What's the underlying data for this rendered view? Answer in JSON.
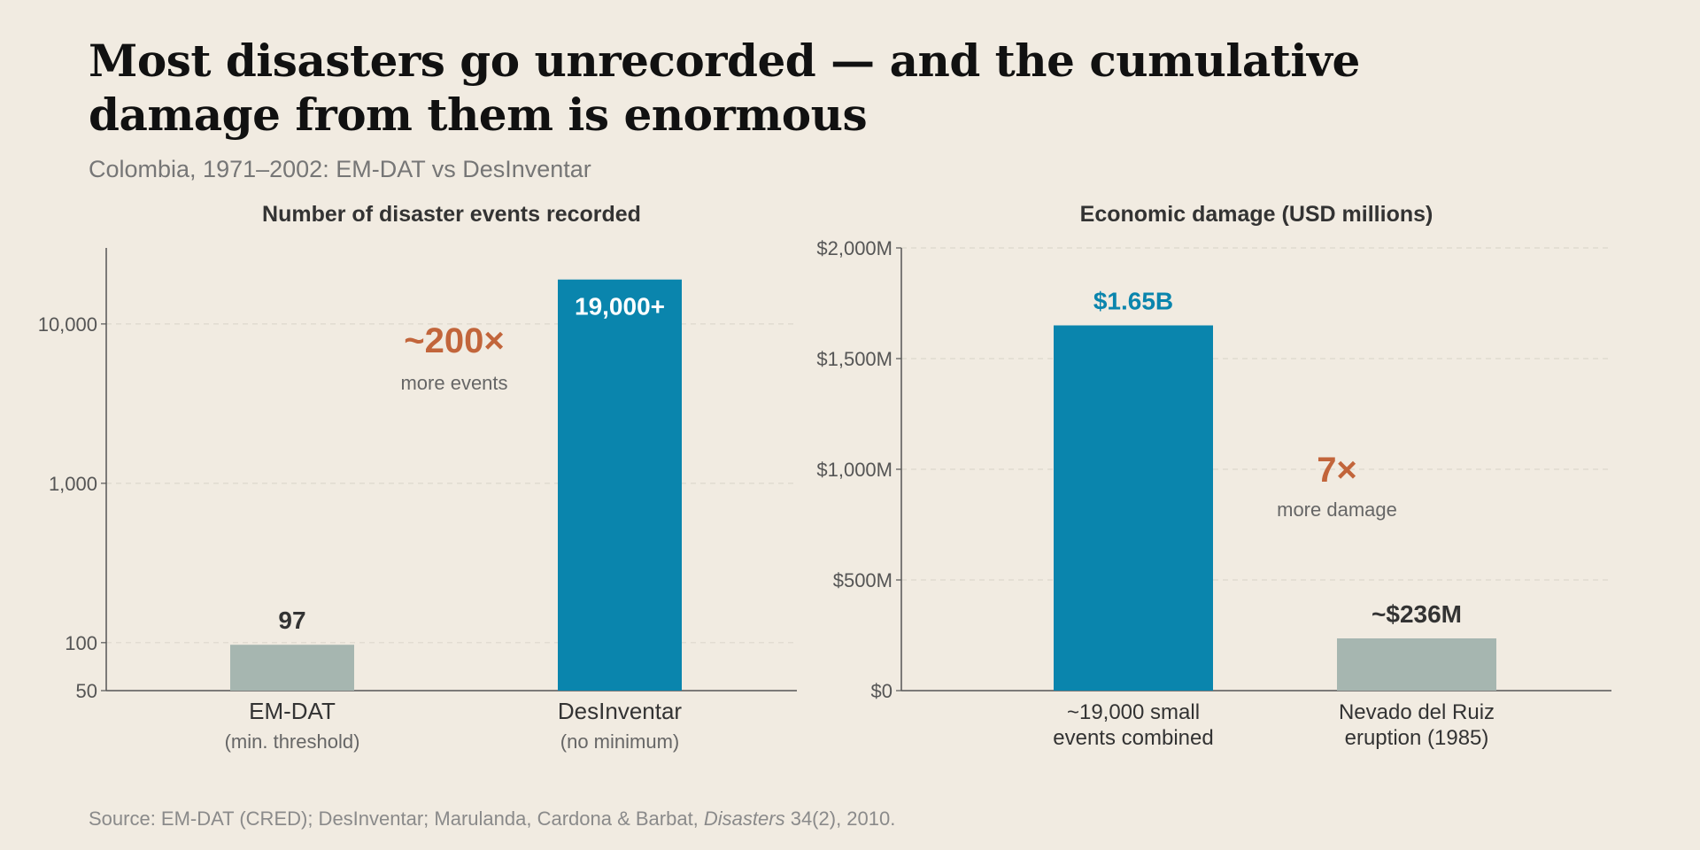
{
  "header": {
    "title_line1": "Most disasters go unrecorded — and the cumulative",
    "title_line2": "damage from them is enormous",
    "subtitle": "Colombia, 1971–2002: EM-DAT vs DesInventar"
  },
  "source": {
    "prefix": "Source: EM-DAT (CRED); DesInventar; Marulanda, Cardona & Barbat, ",
    "journal": "Disasters",
    "suffix": " 34(2), 2010."
  },
  "colors": {
    "accent": "#0a85ad",
    "muted_bar": "#a6b6b0",
    "highlight": "#c2653b",
    "axis": "#555555",
    "grid": "#ddd8cd"
  },
  "chart_data": [
    {
      "type": "bar",
      "title": "Number of disaster events recorded",
      "scale": "log",
      "ylim": [
        50,
        30000
      ],
      "yticks": [
        50,
        100,
        1000,
        10000
      ],
      "ytick_labels": [
        "50",
        "100",
        "1,000",
        "10,000"
      ],
      "grid": true,
      "categories": [
        {
          "label": "EM-DAT",
          "sublabel": "(min. threshold)"
        },
        {
          "label": "DesInventar",
          "sublabel": "(no minimum)"
        }
      ],
      "values": [
        97,
        19000
      ],
      "value_labels": [
        "97",
        "19,000+"
      ],
      "bar_colors": [
        "#a6b6b0",
        "#0a85ad"
      ],
      "annotation": {
        "text": "~200×",
        "subtext": "more events"
      }
    },
    {
      "type": "bar",
      "title": "Economic damage (USD millions)",
      "scale": "linear",
      "ylim": [
        0,
        2000
      ],
      "yticks": [
        0,
        500,
        1000,
        1500,
        2000
      ],
      "ytick_labels": [
        "$0",
        "$500M",
        "$1,000M",
        "$1,500M",
        "$2,000M"
      ],
      "grid": true,
      "categories": [
        {
          "line1": "~19,000 small",
          "line2": "events combined"
        },
        {
          "line1": "Nevado del Ruiz",
          "line2": "eruption (1985)"
        }
      ],
      "values": [
        1650,
        236
      ],
      "value_labels": [
        "$1.65B",
        "~$236M"
      ],
      "bar_colors": [
        "#0a85ad",
        "#a6b6b0"
      ],
      "annotation": {
        "text": "7×",
        "subtext": "more damage"
      }
    }
  ]
}
